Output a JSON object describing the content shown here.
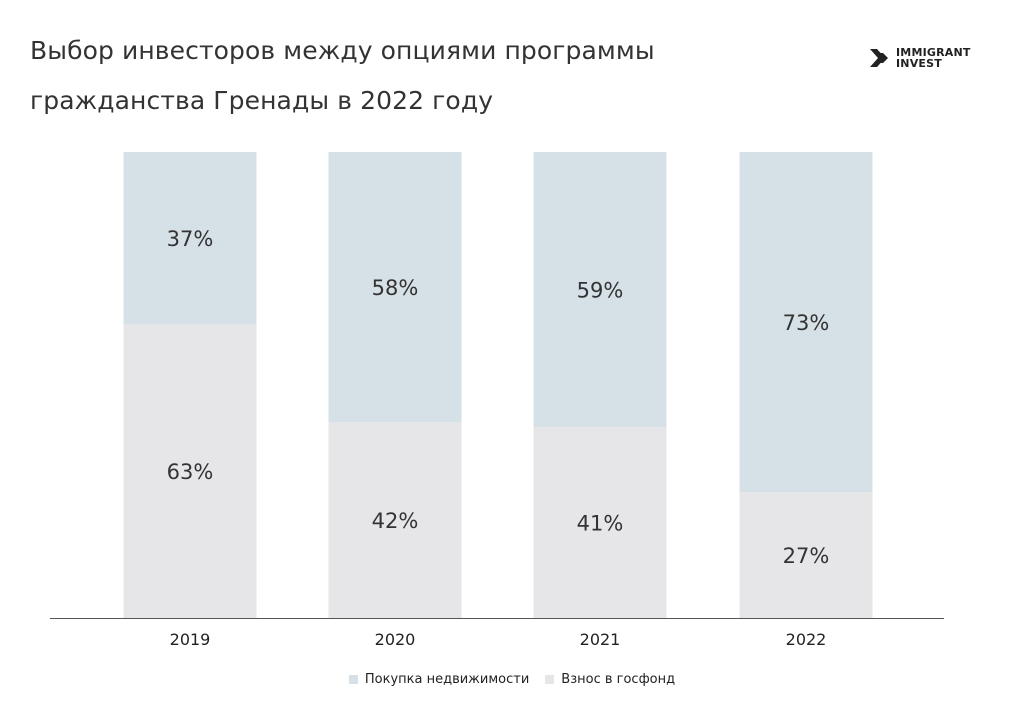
{
  "header": {
    "title_line1": "Выбор инвесторов между опциями программы",
    "title_line2": "гражданства Гренады в 2022 году"
  },
  "logo": {
    "line1": "IMMIGRANT",
    "line2": "INVEST",
    "icon": "double-chevron-right-icon"
  },
  "colors": {
    "real_estate": "#d6e0e7",
    "fund": "#e6e6e9",
    "axis": "#555555",
    "text": "#333333"
  },
  "chart_data": {
    "type": "bar",
    "stacked": true,
    "normalized_percent": true,
    "categories": [
      "2019",
      "2020",
      "2021",
      "2022"
    ],
    "series": [
      {
        "name": "Взнос в госфонд",
        "values": [
          63,
          42,
          41,
          27
        ],
        "labels": [
          "63%",
          "42%",
          "41%",
          "27%"
        ]
      },
      {
        "name": "Покупка недвижимости",
        "values": [
          37,
          58,
          59,
          73
        ],
        "labels": [
          "37%",
          "58%",
          "59%",
          "73%"
        ]
      }
    ],
    "ylim": [
      0,
      100
    ],
    "grid": false,
    "legend": "bottom-center",
    "legend_order": [
      "Покупка недвижимости",
      "Взнос в госфонд"
    ]
  }
}
